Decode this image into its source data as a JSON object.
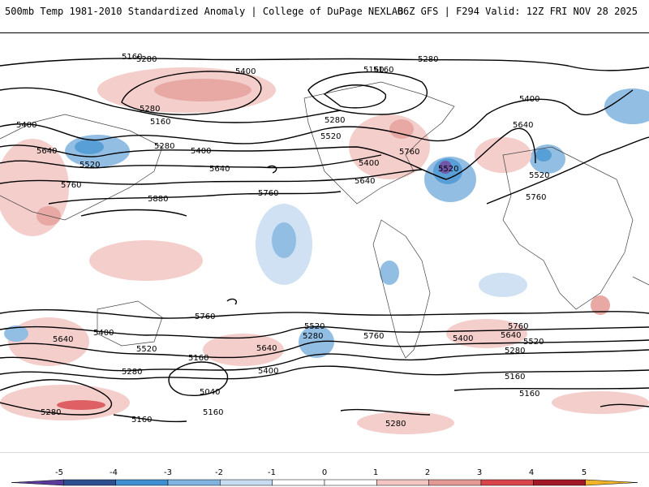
{
  "header": {
    "left": "500mb Temp 1981-2010 Standardized Anomaly | College of DuPage NEXLAB",
    "right": "06Z GFS | F294 Valid: 12Z FRI NOV 28 2025"
  },
  "colorbar": {
    "ticks": [
      "-5",
      "-4",
      "-3",
      "-2",
      "-1",
      "0",
      "1",
      "2",
      "3",
      "4",
      "5"
    ],
    "colors": [
      "#5a3a9a",
      "#2e4f8f",
      "#3d8fd1",
      "#7fb3e0",
      "#c7dcf0",
      "#ffffff",
      "#ffffff",
      "#f3c6c3",
      "#e49a94",
      "#d9454a",
      "#a31826",
      "#f0b429"
    ]
  },
  "contour_labels": [
    {
      "text": "5280"
    },
    {
      "text": "5400"
    },
    {
      "text": "5160"
    },
    {
      "text": "5280"
    },
    {
      "text": "5160"
    },
    {
      "text": "5280"
    },
    {
      "text": "5400"
    },
    {
      "text": "5520"
    },
    {
      "text": "5640"
    },
    {
      "text": "5760"
    },
    {
      "text": "5880"
    },
    {
      "text": "5640"
    },
    {
      "text": "5760"
    },
    {
      "text": "5280"
    },
    {
      "text": "5400"
    },
    {
      "text": "5520"
    },
    {
      "text": "5400"
    },
    {
      "text": "5640"
    },
    {
      "text": "5760"
    },
    {
      "text": "5520"
    },
    {
      "text": "5280"
    },
    {
      "text": "5160"
    },
    {
      "text": "5400"
    },
    {
      "text": "5640"
    },
    {
      "text": "5520"
    },
    {
      "text": "5160"
    },
    {
      "text": "5760"
    },
    {
      "text": "5640"
    },
    {
      "text": "5400"
    },
    {
      "text": "5520"
    },
    {
      "text": "5280"
    },
    {
      "text": "5160"
    },
    {
      "text": "5040"
    },
    {
      "text": "5160"
    },
    {
      "text": "5760"
    },
    {
      "text": "5520"
    },
    {
      "text": "5280"
    },
    {
      "text": "5640"
    },
    {
      "text": "5400"
    },
    {
      "text": "5760"
    },
    {
      "text": "5760"
    },
    {
      "text": "5640"
    },
    {
      "text": "5520"
    },
    {
      "text": "5400"
    },
    {
      "text": "5280"
    },
    {
      "text": "5160"
    },
    {
      "text": "5160"
    },
    {
      "text": "5280"
    },
    {
      "text": "5280"
    },
    {
      "text": "5160"
    }
  ]
}
